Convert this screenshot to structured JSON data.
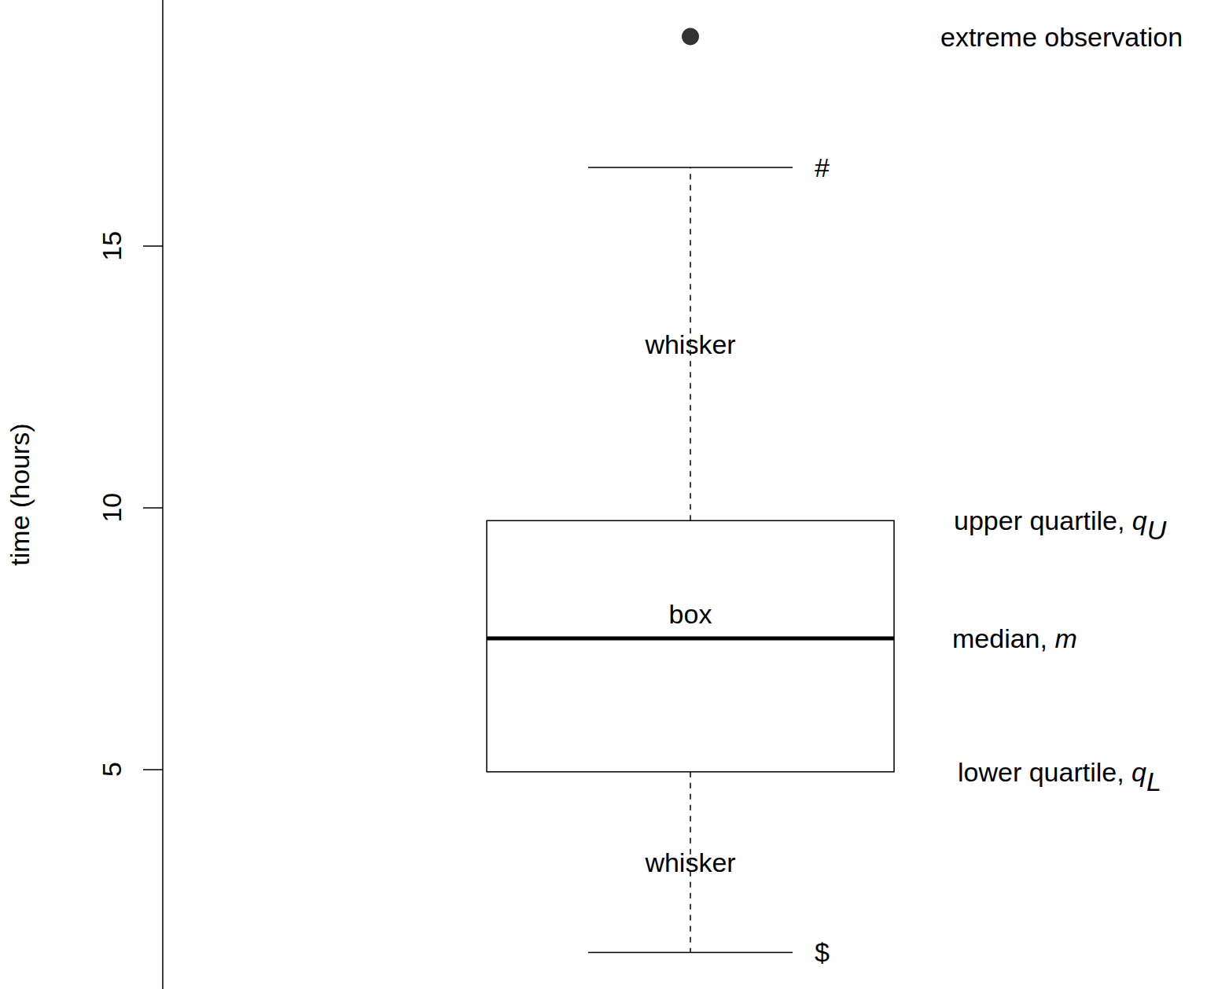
{
  "chart_data": {
    "type": "boxplot",
    "ylabel": "time (hours)",
    "ylim": [
      0.8,
      19.7
    ],
    "yticks": [
      5,
      10,
      15
    ],
    "tick_labels": "y",
    "grid": false,
    "color": "#000000",
    "marker": "circle",
    "line_style": "dashed",
    "box": {
      "lower_whisker": 1.5,
      "lower_quartile": 4.95,
      "median": 7.5,
      "upper_quartile": 9.75,
      "upper_whisker": 16.5
    },
    "outliers": [
      19.0
    ],
    "annotations": {
      "extreme": "extreme observation",
      "upper_whisker_end": "#",
      "lower_whisker_end": "$",
      "whisker": "whisker",
      "box": "box",
      "upper_quartile": {
        "text": "upper quartile,",
        "symbol": "q",
        "subscript": "U"
      },
      "median": {
        "text": "median,",
        "symbol": "m"
      },
      "lower_quartile": {
        "text": "lower quartile,",
        "symbol": "q",
        "subscript": "L"
      }
    }
  }
}
